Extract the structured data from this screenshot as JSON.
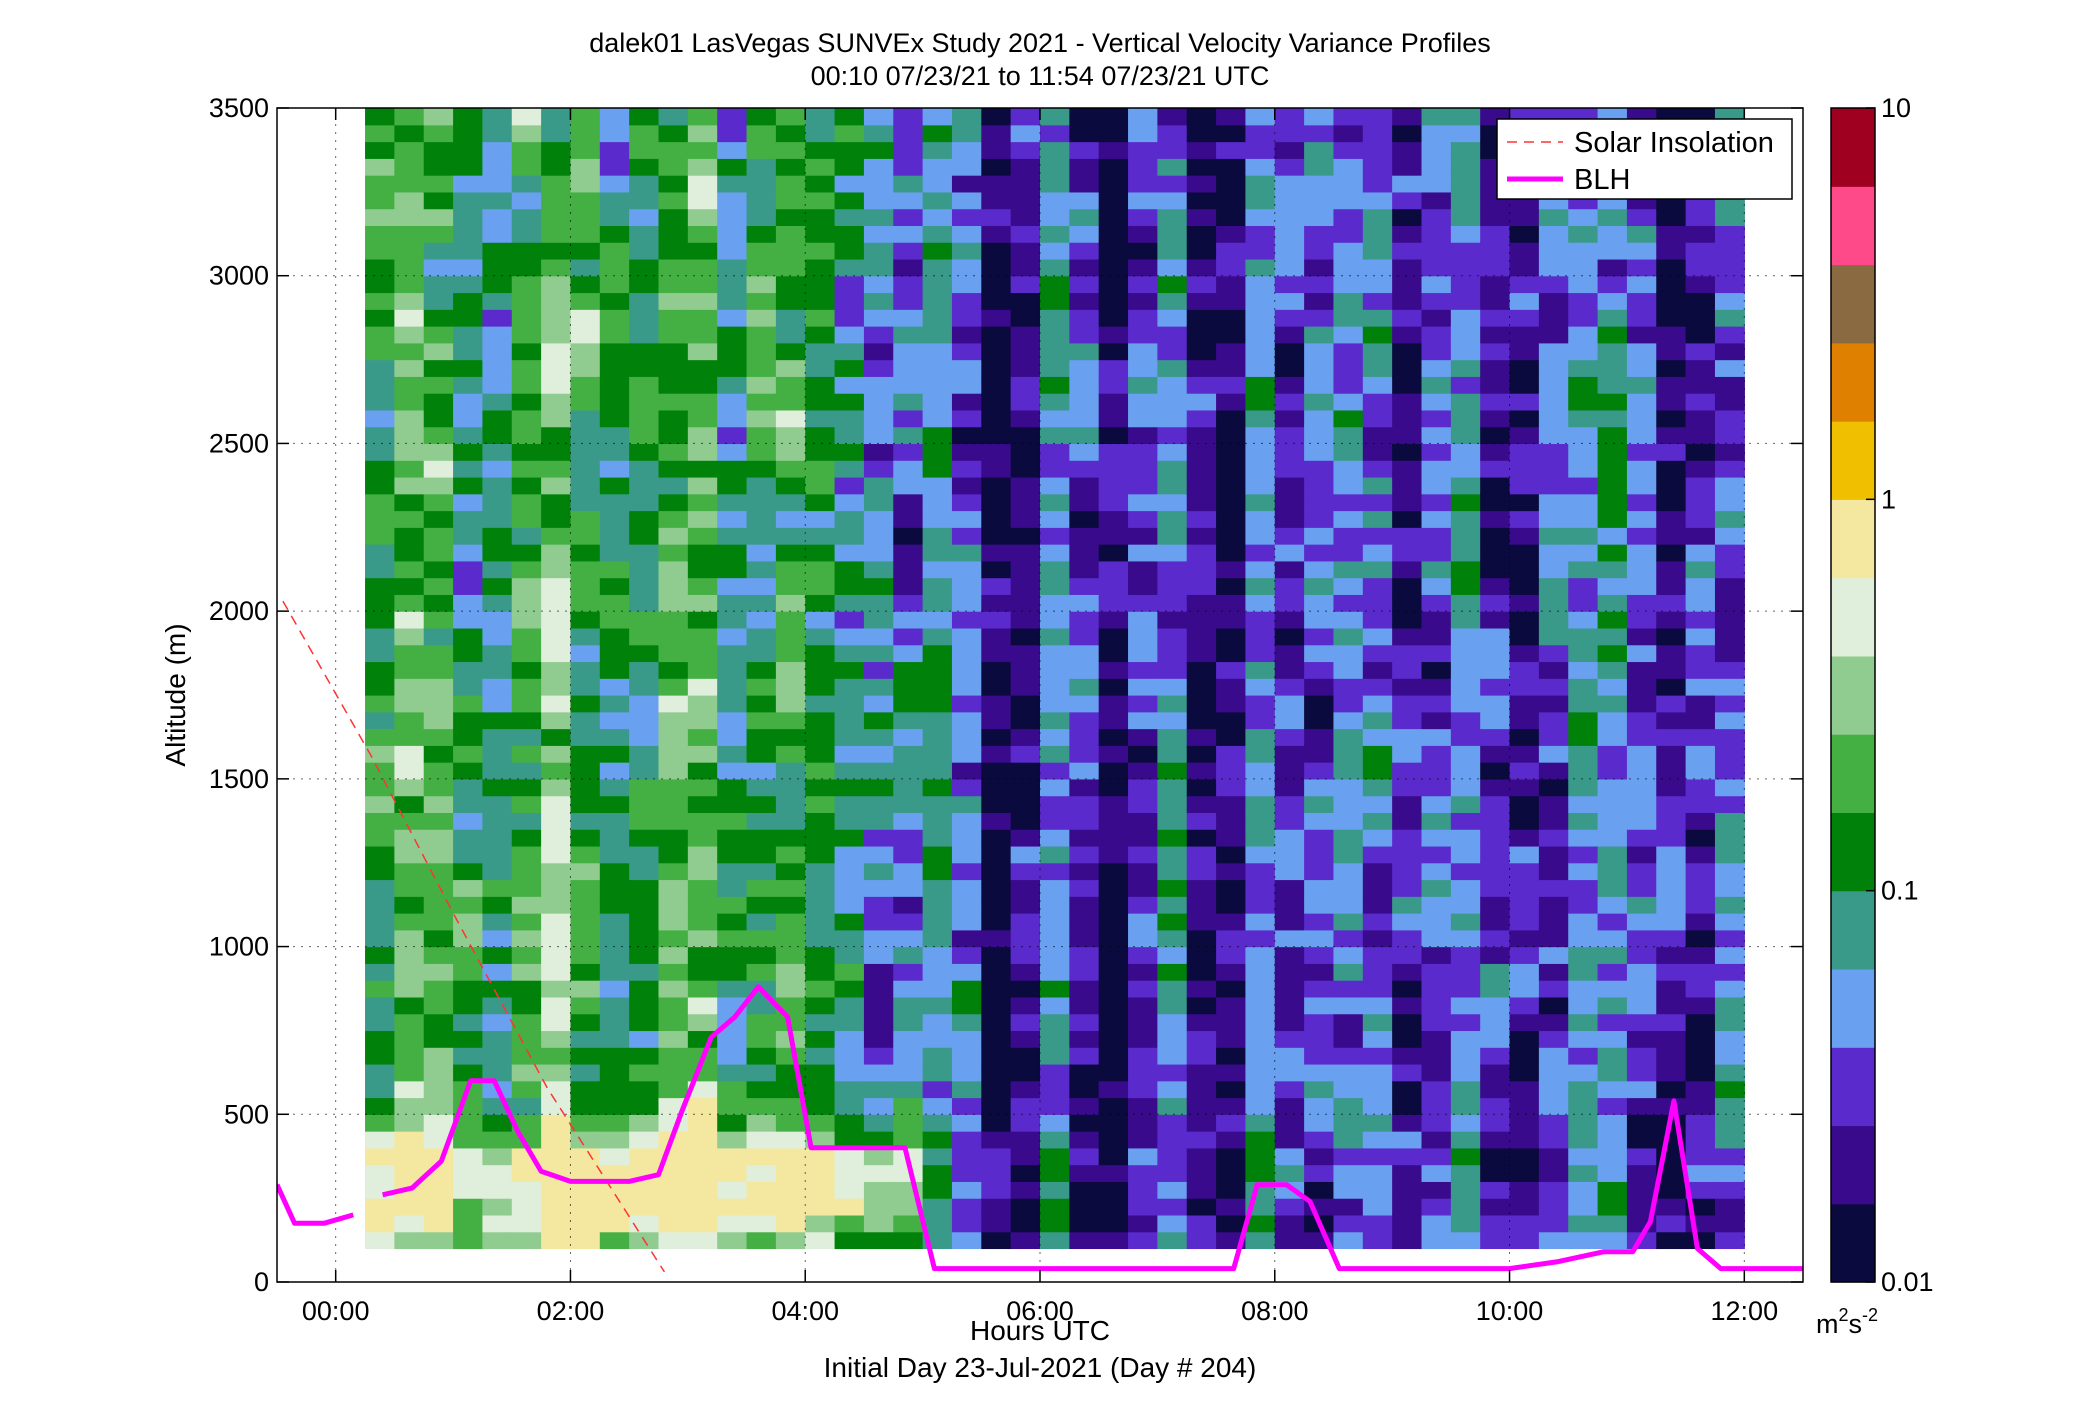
{
  "chart_data": {
    "type": "heatmap",
    "title": "dalek01 LasVegas SUNVEx Study 2021 - Vertical Velocity Variance Profiles",
    "subtitle": "00:10 07/23/21 to 11:54 07/23/21  UTC",
    "xlabel": "Hours UTC",
    "xlabel2": "Initial Day 23-Jul-2021 (Day # 204)",
    "ylabel": "Altitude (m)",
    "x_unit": "hours",
    "xlim": [
      -0.5,
      12.5
    ],
    "ylim": [
      0,
      3500
    ],
    "x_ticks": [
      {
        "value": 0,
        "label": "00:00"
      },
      {
        "value": 2,
        "label": "02:00"
      },
      {
        "value": 4,
        "label": "04:00"
      },
      {
        "value": 6,
        "label": "06:00"
      },
      {
        "value": 8,
        "label": "08:00"
      },
      {
        "value": 10,
        "label": "10:00"
      },
      {
        "value": 12,
        "label": "12:00"
      }
    ],
    "y_ticks": [
      {
        "value": 0,
        "label": "0"
      },
      {
        "value": 500,
        "label": "500"
      },
      {
        "value": 1000,
        "label": "1000"
      },
      {
        "value": 1500,
        "label": "1500"
      },
      {
        "value": 2000,
        "label": "2000"
      },
      {
        "value": 2500,
        "label": "2500"
      },
      {
        "value": 3000,
        "label": "3000"
      },
      {
        "value": 3500,
        "label": "3500"
      }
    ],
    "grid": true,
    "legend_position": "top-right",
    "colorbar": {
      "scale": "log",
      "range": [
        0.01,
        10
      ],
      "ticks": [
        {
          "value": 10,
          "label": "10"
        },
        {
          "value": 1,
          "label": "1"
        },
        {
          "value": 0.1,
          "label": "0.1"
        },
        {
          "value": 0.01,
          "label": "0.01"
        }
      ],
      "unit_base": "m",
      "unit_sup1": "2",
      "unit_mid": "s",
      "unit_sup2": "-2"
    },
    "series": [
      {
        "name": "Solar Insolation",
        "style": "dashed",
        "color": "#ff3333",
        "x": [
          -0.45,
          0.3,
          1.0,
          1.8,
          2.8
        ],
        "y": [
          2030,
          1570,
          1100,
          580,
          30
        ]
      },
      {
        "name": "BLH",
        "style": "solid",
        "color": "#ff00ff",
        "segments": [
          {
            "x": [
              -0.5,
              -0.35,
              -0.1,
              0.15
            ],
            "y": [
              290,
              175,
              175,
              200
            ]
          },
          {
            "x": [
              0.4,
              0.65,
              0.9,
              1.15,
              1.35,
              1.55,
              1.75,
              2.0,
              2.25,
              2.5,
              2.75,
              2.95,
              3.2,
              3.4,
              3.6,
              3.85,
              4.05,
              4.3,
              4.55,
              4.85,
              5.1,
              5.4,
              5.7,
              6.0,
              6.3,
              6.6,
              6.9,
              7.2,
              7.45,
              7.65,
              7.85,
              8.1,
              8.3,
              8.55,
              8.9,
              9.3,
              9.7,
              10.0,
              10.4,
              10.8,
              11.05,
              11.2,
              11.4,
              11.6,
              11.8,
              12.0,
              12.5
            ],
            "y": [
              260,
              280,
              360,
              600,
              600,
              450,
              330,
              300,
              300,
              300,
              320,
              510,
              730,
              790,
              880,
              790,
              400,
              400,
              400,
              400,
              40,
              40,
              40,
              40,
              40,
              40,
              40,
              40,
              40,
              40,
              290,
              290,
              240,
              40,
              40,
              40,
              40,
              40,
              60,
              90,
              90,
              180,
              540,
              100,
              40,
              40,
              40
            ]
          }
        ]
      }
    ],
    "heatmap": {
      "x_start": 0.25,
      "x_end": 11.95,
      "x_step": 0.25,
      "y_start": 100,
      "y_end": 3500,
      "y_step": 50,
      "colormap": [
        "#0a0a3e",
        "#3a0a8c",
        "#5a2acc",
        "#6aa0f0",
        "#3a9a8a",
        "#00820a",
        "#44b044",
        "#90cc90",
        "#e0eedc",
        "#f4e8a0",
        "#f0c000",
        "#e08000",
        "#8a6a40",
        "#ff4a8a",
        "#a00020"
      ],
      "description_of_field": "log10 variance pattern"
    }
  }
}
